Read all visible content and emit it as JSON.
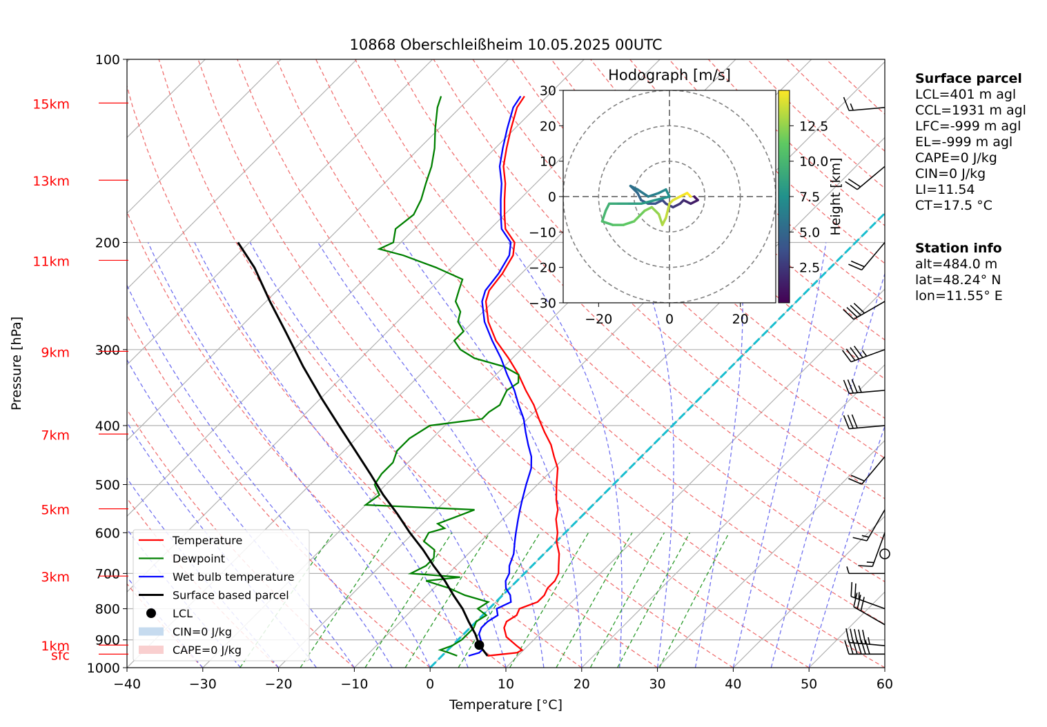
{
  "chart_data": [
    {
      "type": "line",
      "title": "10868 Oberschleißheim 10.05.2025 00UTC",
      "xlabel": "Temperature [°C]",
      "ylabel": "Pressure [hPa]",
      "xlim": [
        -40,
        60
      ],
      "ylim": [
        1000,
        100
      ],
      "log_y": true,
      "skew": true,
      "grid": true,
      "x_ticks": [
        "−40",
        "−30",
        "−20",
        "−10",
        "0",
        "10",
        "20",
        "30",
        "40",
        "50",
        "60"
      ],
      "x_tick_values": [
        -40,
        -30,
        -20,
        -10,
        0,
        10,
        20,
        30,
        40,
        50,
        60
      ],
      "y_ticks": [
        "100",
        "200",
        "300",
        "400",
        "500",
        "600",
        "700",
        "800",
        "900",
        "1000"
      ],
      "y_tick_values": [
        100,
        200,
        300,
        400,
        500,
        600,
        700,
        800,
        900,
        1000
      ],
      "height_ticks": [
        {
          "label": "15km",
          "p": 118
        },
        {
          "label": "13km",
          "p": 158
        },
        {
          "label": "11km",
          "p": 214
        },
        {
          "label": "9km",
          "p": 302
        },
        {
          "label": "7km",
          "p": 413
        },
        {
          "label": "5km",
          "p": 548
        },
        {
          "label": "3km",
          "p": 707
        },
        {
          "label": "1km",
          "p": 918
        },
        {
          "label": "sfc",
          "p": 950
        }
      ],
      "series": [
        {
          "name": "Temperature",
          "color": "#ff0000",
          "points": [
            [
              956,
              6.0
            ],
            [
              945,
              9.5
            ],
            [
              935,
              9.8
            ],
            [
              920,
              8.5
            ],
            [
              890,
              6.0
            ],
            [
              860,
              4.5
            ],
            [
              840,
              4.0
            ],
            [
              820,
              4.5
            ],
            [
              800,
              4.0
            ],
            [
              780,
              5.5
            ],
            [
              760,
              5.5
            ],
            [
              740,
              5.0
            ],
            [
              720,
              5.0
            ],
            [
              700,
              4.5
            ],
            [
              680,
              3.5
            ],
            [
              650,
              2.0
            ],
            [
              620,
              0.0
            ],
            [
              600,
              -1.0
            ],
            [
              570,
              -3.0
            ],
            [
              550,
              -4.0
            ],
            [
              530,
              -5.5
            ],
            [
              500,
              -7.5
            ],
            [
              470,
              -9.5
            ],
            [
              450,
              -11.5
            ],
            [
              430,
              -13.5
            ],
            [
              410,
              -16.0
            ],
            [
              390,
              -18.5
            ],
            [
              370,
              -21.0
            ],
            [
              350,
              -24.0
            ],
            [
              330,
              -27.0
            ],
            [
              310,
              -30.5
            ],
            [
              290,
              -34.5
            ],
            [
              270,
              -38.0
            ],
            [
              250,
              -41.0
            ],
            [
              240,
              -42.0
            ],
            [
              225,
              -42.5
            ],
            [
              210,
              -43.5
            ],
            [
              200,
              -45.0
            ],
            [
              190,
              -48.0
            ],
            [
              180,
              -50.0
            ],
            [
              170,
              -52.0
            ],
            [
              160,
              -54.0
            ],
            [
              150,
              -56.5
            ],
            [
              140,
              -58.5
            ],
            [
              130,
              -60.5
            ],
            [
              120,
              -62.5
            ],
            [
              115,
              -63.0
            ]
          ]
        },
        {
          "name": "Dewpoint",
          "color": "#008000",
          "points": [
            [
              956,
              2.0
            ],
            [
              945,
              0.5
            ],
            [
              935,
              -1.0
            ],
            [
              920,
              0.0
            ],
            [
              900,
              0.5
            ],
            [
              880,
              0.5
            ],
            [
              860,
              0.5
            ],
            [
              840,
              0.0
            ],
            [
              820,
              0.5
            ],
            [
              800,
              -1.5
            ],
            [
              780,
              -1.0
            ],
            [
              760,
              -5.0
            ],
            [
              740,
              -8.0
            ],
            [
              720,
              -12.0
            ],
            [
              710,
              -8.0
            ],
            [
              700,
              -15.0
            ],
            [
              680,
              -14.0
            ],
            [
              660,
              -14.0
            ],
            [
              640,
              -15.0
            ],
            [
              620,
              -17.5
            ],
            [
              600,
              -18.0
            ],
            [
              590,
              -16.5
            ],
            [
              580,
              -18.0
            ],
            [
              560,
              -16.0
            ],
            [
              550,
              -15.0
            ],
            [
              540,
              -30.0
            ],
            [
              520,
              -29.5
            ],
            [
              500,
              -31.5
            ],
            [
              480,
              -32.0
            ],
            [
              460,
              -32.0
            ],
            [
              440,
              -33.0
            ],
            [
              420,
              -33.0
            ],
            [
              400,
              -32.0
            ],
            [
              390,
              -26.0
            ],
            [
              380,
              -26.0
            ],
            [
              370,
              -25.5
            ],
            [
              360,
              -26.0
            ],
            [
              350,
              -26.5
            ],
            [
              340,
              -26.0
            ],
            [
              330,
              -27.0
            ],
            [
              320,
              -30.0
            ],
            [
              310,
              -35.0
            ],
            [
              300,
              -38.0
            ],
            [
              290,
              -40.0
            ],
            [
              280,
              -40.0
            ],
            [
              270,
              -42.0
            ],
            [
              260,
              -43.0
            ],
            [
              250,
              -45.0
            ],
            [
              240,
              -46.0
            ],
            [
              230,
              -47.0
            ],
            [
              220,
              -52.0
            ],
            [
              210,
              -58.0
            ],
            [
              205,
              -62.0
            ],
            [
              200,
              -61.0
            ],
            [
              190,
              -62.5
            ],
            [
              180,
              -62.0
            ],
            [
              170,
              -63.0
            ],
            [
              160,
              -64.5
            ],
            [
              150,
              -66.0
            ],
            [
              140,
              -68.0
            ],
            [
              130,
              -70.5
            ],
            [
              120,
              -73.0
            ],
            [
              115,
              -74.0
            ]
          ]
        },
        {
          "name": "Wet bulb temperature",
          "color": "#0000ff",
          "points": [
            [
              956,
              3.5
            ],
            [
              945,
              4.5
            ],
            [
              935,
              4.5
            ],
            [
              920,
              4.0
            ],
            [
              900,
              3.0
            ],
            [
              880,
              2.0
            ],
            [
              860,
              1.5
            ],
            [
              840,
              1.5
            ],
            [
              820,
              2.0
            ],
            [
              800,
              1.0
            ],
            [
              780,
              2.0
            ],
            [
              760,
              1.0
            ],
            [
              740,
              -0.5
            ],
            [
              720,
              -1.5
            ],
            [
              700,
              -2.0
            ],
            [
              680,
              -3.0
            ],
            [
              650,
              -4.0
            ],
            [
              620,
              -5.5
            ],
            [
              600,
              -6.5
            ],
            [
              570,
              -8.0
            ],
            [
              550,
              -9.0
            ],
            [
              530,
              -10.0
            ],
            [
              500,
              -11.5
            ],
            [
              470,
              -13.0
            ],
            [
              450,
              -14.5
            ],
            [
              430,
              -16.5
            ],
            [
              410,
              -18.5
            ],
            [
              390,
              -20.5
            ],
            [
              370,
              -23.0
            ],
            [
              350,
              -25.5
            ],
            [
              330,
              -28.5
            ],
            [
              310,
              -31.5
            ],
            [
              290,
              -35.0
            ],
            [
              270,
              -38.5
            ],
            [
              250,
              -41.5
            ],
            [
              240,
              -42.5
            ],
            [
              225,
              -43.0
            ],
            [
              210,
              -44.0
            ],
            [
              200,
              -45.5
            ],
            [
              190,
              -48.5
            ],
            [
              180,
              -50.5
            ],
            [
              170,
              -52.5
            ],
            [
              160,
              -54.5
            ],
            [
              150,
              -57.0
            ],
            [
              140,
              -59.0
            ],
            [
              130,
              -61.0
            ],
            [
              120,
              -63.0
            ],
            [
              115,
              -63.5
            ]
          ]
        },
        {
          "name": "Surface based parcel",
          "color": "#000000",
          "points": [
            [
              956,
              6.0
            ],
            [
              918,
              3.5
            ],
            [
              880,
              1.5
            ],
            [
              840,
              -1.0
            ],
            [
              800,
              -3.5
            ],
            [
              760,
              -6.5
            ],
            [
              720,
              -9.5
            ],
            [
              680,
              -13.0
            ],
            [
              640,
              -16.5
            ],
            [
              600,
              -20.5
            ],
            [
              560,
              -24.5
            ],
            [
              520,
              -29.0
            ],
            [
              480,
              -33.5
            ],
            [
              440,
              -38.5
            ],
            [
              400,
              -44.0
            ],
            [
              360,
              -50.0
            ],
            [
              320,
              -56.5
            ],
            [
              280,
              -63.5
            ],
            [
              250,
              -69.5
            ],
            [
              220,
              -76.0
            ],
            [
              200,
              -81.5
            ]
          ]
        }
      ],
      "lcl": {
        "p": 918,
        "t": 3.5
      },
      "legend": {
        "placement": "lower-left",
        "entries": [
          "Temperature",
          "Dewpoint",
          "Wet bulb temperature",
          "Surface based parcel",
          "LCL",
          "CIN=0 J/kg",
          "CAPE=0 J/kg"
        ]
      },
      "wind_barbs": [
        {
          "p": 950,
          "speed_kt": 60,
          "dir": 270
        },
        {
          "p": 920,
          "speed_kt": 55,
          "dir": 275
        },
        {
          "p": 850,
          "speed_kt": 30,
          "dir": 300
        },
        {
          "p": 800,
          "speed_kt": 25,
          "dir": 290
        },
        {
          "p": 700,
          "speed_kt": 5,
          "dir": 270
        },
        {
          "p": 650,
          "speed_kt": 0,
          "dir": 0
        },
        {
          "p": 600,
          "speed_kt": 15,
          "dir": 200
        },
        {
          "p": 550,
          "speed_kt": 15,
          "dir": 210
        },
        {
          "p": 450,
          "speed_kt": 20,
          "dir": 220
        },
        {
          "p": 400,
          "speed_kt": 30,
          "dir": 265
        },
        {
          "p": 350,
          "speed_kt": 35,
          "dir": 265
        },
        {
          "p": 300,
          "speed_kt": 45,
          "dir": 250
        },
        {
          "p": 250,
          "speed_kt": 40,
          "dir": 240
        },
        {
          "p": 200,
          "speed_kt": 20,
          "dir": 220
        },
        {
          "p": 150,
          "speed_kt": 20,
          "dir": 230
        },
        {
          "p": 120,
          "speed_kt": 15,
          "dir": 265
        }
      ]
    },
    {
      "type": "line",
      "title": "Hodograph [m/s]",
      "xlim": [
        -30,
        30
      ],
      "ylim": [
        -30,
        30
      ],
      "x_ticks": [
        "−20",
        "0",
        "20"
      ],
      "x_tick_values": [
        -20,
        0,
        20
      ],
      "y_ticks": [
        "30",
        "20",
        "10",
        "0",
        "−10",
        "−20",
        "−30"
      ],
      "y_tick_values": [
        30,
        20,
        10,
        0,
        -10,
        -20,
        -30
      ],
      "rings": [
        10,
        20,
        30
      ],
      "colorbar": {
        "label": "Height [km]",
        "ticks": [
          "2.5",
          "5.0",
          "7.5",
          "10.0",
          "12.5"
        ],
        "tick_values": [
          2.5,
          5.0,
          7.5,
          10.0,
          12.5
        ],
        "range": [
          0,
          15
        ]
      },
      "points": [
        [
          7,
          0,
          0.4
        ],
        [
          8,
          -1,
          0.8
        ],
        [
          6,
          -2,
          1.2
        ],
        [
          4,
          -1,
          1.6
        ],
        [
          3,
          -2,
          2.0
        ],
        [
          1,
          -3,
          2.4
        ],
        [
          -1,
          -2,
          2.8
        ],
        [
          -2,
          -1,
          3.2
        ],
        [
          -4,
          -2,
          3.6
        ],
        [
          -6,
          -2,
          4.0
        ],
        [
          -8,
          -1,
          4.4
        ],
        [
          -9,
          1,
          4.8
        ],
        [
          -11,
          3,
          5.2
        ],
        [
          -9,
          2,
          5.6
        ],
        [
          -6,
          0,
          6.0
        ],
        [
          -3,
          1,
          6.4
        ],
        [
          -1,
          2,
          6.8
        ],
        [
          0,
          0,
          7.2
        ],
        [
          -4,
          -1,
          7.6
        ],
        [
          -8,
          -2,
          8.0
        ],
        [
          -12,
          -2,
          8.4
        ],
        [
          -15,
          -2,
          8.8
        ],
        [
          -17,
          -2,
          9.2
        ],
        [
          -18,
          -4,
          9.6
        ],
        [
          -19,
          -7,
          10.0
        ],
        [
          -16,
          -8,
          10.4
        ],
        [
          -13,
          -8,
          10.8
        ],
        [
          -10,
          -7,
          11.2
        ],
        [
          -7,
          -4,
          11.6
        ],
        [
          -5,
          -3,
          12.0
        ],
        [
          -3,
          -5,
          12.4
        ],
        [
          -2,
          -8,
          12.8
        ],
        [
          -1,
          -6,
          13.2
        ],
        [
          0,
          -2,
          13.6
        ],
        [
          1,
          -1,
          14.0
        ],
        [
          3,
          0,
          14.4
        ],
        [
          5,
          1,
          14.8
        ],
        [
          6,
          0,
          15.0
        ]
      ]
    }
  ],
  "surface_parcel": {
    "title": "Surface parcel",
    "lines": [
      "LCL=401 m agl",
      "CCL=1931 m agl",
      "LFC=-999 m agl",
      "EL=-999 m agl",
      "CAPE=0 J/kg",
      "CIN=0 J/kg",
      "LI=11.54",
      "CT=17.5 °C"
    ]
  },
  "station_info": {
    "title": "Station info",
    "lines": [
      "alt=484.0 m",
      "lat=48.24° N",
      "lon=11.55° E"
    ]
  }
}
